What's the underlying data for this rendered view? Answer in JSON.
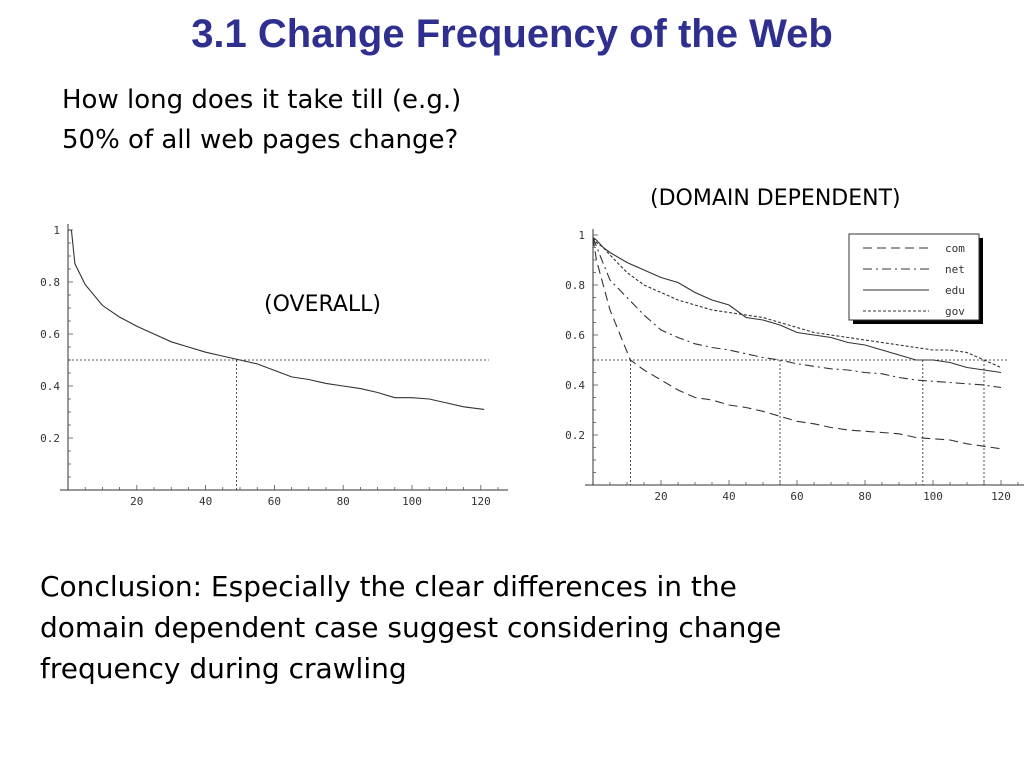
{
  "slide": {
    "title": "3.1 Change Frequency of the Web",
    "question_lines": [
      "How long does it take till (e.g.)",
      "50% of all web pages change?"
    ],
    "conclusion_lines": [
      "Conclusion: Especially the clear differences in the",
      "domain dependent case suggest considering change",
      "frequency during crawling"
    ]
  },
  "chart_data": [
    {
      "type": "line",
      "caption": "(OVERALL)",
      "xlim": [
        0,
        125
      ],
      "ylim": [
        0,
        1
      ],
      "x_ticks": [
        20,
        40,
        60,
        80,
        100,
        120
      ],
      "y_ticks": [
        0.2,
        0.4,
        0.6,
        0.8,
        1
      ],
      "grid": false,
      "series": [
        {
          "x": [
            0,
            1,
            2,
            5,
            10,
            15,
            20,
            25,
            30,
            35,
            40,
            45,
            50,
            55,
            60,
            65,
            70,
            75,
            80,
            85,
            90,
            95,
            100,
            105,
            110,
            115,
            121
          ],
          "y": [
            1.0,
            1.0,
            0.87,
            0.79,
            0.71,
            0.665,
            0.63,
            0.6,
            0.57,
            0.55,
            0.53,
            0.515,
            0.5,
            0.485,
            0.46,
            0.435,
            0.425,
            0.41,
            0.4,
            0.39,
            0.375,
            0.355,
            0.355,
            0.35,
            0.335,
            0.32,
            0.31
          ],
          "style": "solid"
        }
      ],
      "guide_line": {
        "y": 0.5,
        "x": 49
      }
    },
    {
      "type": "line",
      "caption": "(DOMAIN DEPENDENT)",
      "xlim": [
        0,
        125
      ],
      "ylim": [
        0,
        1
      ],
      "x_ticks": [
        20,
        40,
        60,
        80,
        100,
        120
      ],
      "y_ticks": [
        0.2,
        0.4,
        0.6,
        0.8,
        1
      ],
      "grid": false,
      "legend_position": "top-right",
      "series": [
        {
          "name": "com",
          "style": "dash",
          "x": [
            0,
            1,
            3,
            5,
            8,
            11,
            15,
            20,
            25,
            30,
            35,
            40,
            45,
            50,
            55,
            60,
            65,
            70,
            75,
            80,
            85,
            90,
            95,
            100,
            105,
            110,
            115,
            120
          ],
          "y": [
            0.99,
            0.9,
            0.8,
            0.7,
            0.6,
            0.5,
            0.46,
            0.42,
            0.38,
            0.35,
            0.34,
            0.32,
            0.31,
            0.295,
            0.275,
            0.255,
            0.245,
            0.23,
            0.22,
            0.215,
            0.21,
            0.205,
            0.19,
            0.185,
            0.18,
            0.165,
            0.155,
            0.145
          ]
        },
        {
          "name": "net",
          "style": "dashdot",
          "x": [
            0,
            2,
            5,
            10,
            15,
            20,
            25,
            30,
            35,
            40,
            45,
            50,
            55,
            60,
            65,
            70,
            75,
            80,
            85,
            90,
            95,
            100,
            105,
            110,
            115,
            120
          ],
          "y": [
            0.99,
            0.92,
            0.82,
            0.75,
            0.68,
            0.62,
            0.59,
            0.565,
            0.55,
            0.54,
            0.525,
            0.51,
            0.5,
            0.485,
            0.475,
            0.465,
            0.46,
            0.45,
            0.445,
            0.43,
            0.42,
            0.415,
            0.41,
            0.405,
            0.4,
            0.39
          ]
        },
        {
          "name": "edu",
          "style": "solid",
          "x": [
            0,
            1,
            3,
            5,
            10,
            15,
            20,
            25,
            30,
            35,
            40,
            45,
            50,
            55,
            60,
            65,
            70,
            75,
            80,
            85,
            90,
            95,
            100,
            105,
            110,
            115,
            120
          ],
          "y": [
            0.99,
            0.98,
            0.95,
            0.93,
            0.89,
            0.86,
            0.83,
            0.81,
            0.77,
            0.74,
            0.72,
            0.67,
            0.66,
            0.64,
            0.61,
            0.6,
            0.59,
            0.57,
            0.56,
            0.54,
            0.52,
            0.5,
            0.5,
            0.49,
            0.47,
            0.46,
            0.45
          ]
        },
        {
          "name": "gov",
          "style": "dotted",
          "x": [
            0,
            1,
            3,
            5,
            10,
            15,
            20,
            25,
            30,
            35,
            40,
            45,
            50,
            55,
            60,
            65,
            70,
            75,
            80,
            85,
            90,
            95,
            100,
            105,
            110,
            115,
            120
          ],
          "y": [
            0.99,
            0.97,
            0.95,
            0.92,
            0.85,
            0.8,
            0.77,
            0.74,
            0.72,
            0.7,
            0.69,
            0.68,
            0.67,
            0.65,
            0.63,
            0.61,
            0.6,
            0.59,
            0.58,
            0.57,
            0.56,
            0.55,
            0.54,
            0.54,
            0.53,
            0.5,
            0.47
          ]
        }
      ],
      "guide_line": {
        "y": 0.5,
        "x_drops": [
          11,
          55,
          97,
          115
        ]
      }
    }
  ]
}
